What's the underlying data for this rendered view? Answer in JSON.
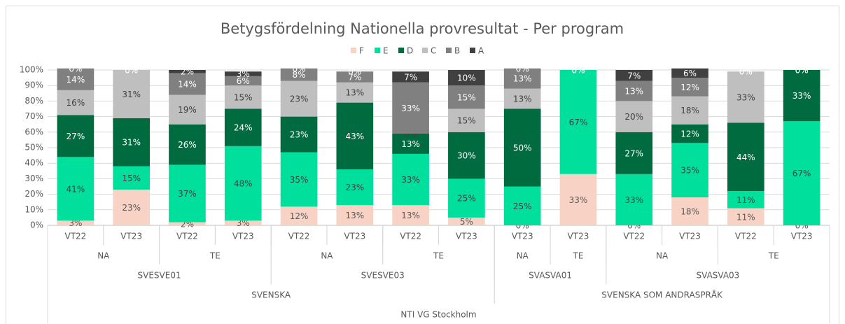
{
  "chart_data": {
    "type": "stacked_bar",
    "title": "Betygsfördelning Nationella provresultat - Per program",
    "category_tree": {
      "label": "NTI VG Stockholm",
      "children": [
        {
          "label": "SVENSKA",
          "children": [
            {
              "label": "SVESVE01",
              "children": [
                {
                  "label": "NA",
                  "children": [
                    {
                      "label": "VT22"
                    },
                    {
                      "label": "VT23"
                    }
                  ]
                },
                {
                  "label": "TE",
                  "children": [
                    {
                      "label": "VT22"
                    },
                    {
                      "label": "VT23"
                    }
                  ]
                }
              ]
            },
            {
              "label": "SVESVE03",
              "children": [
                {
                  "label": "NA",
                  "children": [
                    {
                      "label": "VT22"
                    },
                    {
                      "label": "VT23"
                    }
                  ]
                },
                {
                  "label": "TE",
                  "children": [
                    {
                      "label": "VT22"
                    },
                    {
                      "label": "VT23"
                    }
                  ]
                }
              ]
            }
          ]
        },
        {
          "label": "SVENSKA SOM ANDRASPRÅK",
          "children": [
            {
              "label": "SVASVA01",
              "children": [
                {
                  "label": "NA",
                  "children": [
                    {
                      "label": "VT23"
                    }
                  ]
                },
                {
                  "label": "TE",
                  "children": [
                    {
                      "label": "VT23"
                    }
                  ]
                }
              ]
            },
            {
              "label": "SVASVA03",
              "children": [
                {
                  "label": "NA",
                  "children": [
                    {
                      "label": "VT22"
                    },
                    {
                      "label": "VT23"
                    }
                  ]
                },
                {
                  "label": "TE",
                  "children": [
                    {
                      "label": "VT22"
                    },
                    {
                      "label": "VT23"
                    }
                  ]
                }
              ]
            }
          ]
        }
      ]
    },
    "series": [
      {
        "name": "F",
        "color": "#f8d3c5",
        "label_color": "#595959",
        "values": [
          3,
          23,
          2,
          3,
          12,
          13,
          13,
          5,
          0,
          33,
          0,
          18,
          11,
          0
        ],
        "value_labels": [
          "3%",
          "23%",
          "2%",
          "3%",
          "12%",
          "13%",
          "13%",
          "5%",
          "0%",
          "33%",
          "0%",
          "18%",
          "11%",
          "0%"
        ]
      },
      {
        "name": "E",
        "color": "#00df9b",
        "label_color": "#404040",
        "values": [
          41,
          15,
          37,
          48,
          35,
          23,
          33,
          25,
          25,
          67,
          33,
          35,
          11,
          67
        ],
        "value_labels": [
          "41%",
          "15%",
          "37%",
          "48%",
          "35%",
          "23%",
          "33%",
          "25%",
          "25%",
          "67%",
          "33%",
          "35%",
          "11%",
          "67%"
        ]
      },
      {
        "name": "D",
        "color": "#006b3f",
        "label_color": "#ffffff",
        "values": [
          27,
          31,
          26,
          24,
          23,
          43,
          13,
          30,
          50,
          0,
          27,
          12,
          44,
          33
        ],
        "value_labels": [
          "27%",
          "31%",
          "26%",
          "24%",
          "23%",
          "43%",
          "13%",
          "30%",
          "50%",
          "0%",
          "27%",
          "12%",
          "44%",
          "33%"
        ]
      },
      {
        "name": "C",
        "color": "#bfbfbf",
        "label_color": "#404040",
        "values": [
          16,
          31,
          19,
          15,
          23,
          13,
          0,
          15,
          13,
          0,
          20,
          18,
          33,
          0
        ],
        "value_labels": [
          "16%",
          "31%",
          "19%",
          "15%",
          "23%",
          "13%",
          "0%",
          "15%",
          "13%",
          "0%",
          "20%",
          "18%",
          "33%",
          "0%"
        ]
      },
      {
        "name": "B",
        "color": "#808080",
        "label_color": "#ffffff",
        "values": [
          14,
          0,
          14,
          6,
          8,
          7,
          33,
          15,
          13,
          0,
          13,
          12,
          0,
          0
        ],
        "value_labels": [
          "14%",
          "0%",
          "14%",
          "6%",
          "8%",
          "7%",
          "33%",
          "15%",
          "13%",
          "0%",
          "13%",
          "12%",
          "0%",
          "0%"
        ]
      },
      {
        "name": "A",
        "color": "#404040",
        "label_color": "#ffffff",
        "values": [
          0,
          0,
          2,
          3,
          0,
          0,
          7,
          10,
          0,
          0,
          7,
          6,
          0,
          0
        ],
        "value_labels": [
          "0%",
          "0%",
          "2%",
          "3%",
          "0%",
          "0%",
          "7%",
          "10%",
          "0%",
          "0%",
          "7%",
          "6%",
          "0%",
          "0%"
        ]
      }
    ],
    "ylim": [
      0,
      100
    ],
    "yticks": [
      {
        "value": 0,
        "label": "0%"
      },
      {
        "value": 10,
        "label": "10%"
      },
      {
        "value": 20,
        "label": "20%"
      },
      {
        "value": 30,
        "label": "30%"
      },
      {
        "value": 40,
        "label": "40%"
      },
      {
        "value": 50,
        "label": "50%"
      },
      {
        "value": 60,
        "label": "60%"
      },
      {
        "value": 70,
        "label": "70%"
      },
      {
        "value": 80,
        "label": "80%"
      },
      {
        "value": 90,
        "label": "90%"
      },
      {
        "value": 100,
        "label": "100%"
      }
    ],
    "grid": true,
    "legend": "top"
  }
}
